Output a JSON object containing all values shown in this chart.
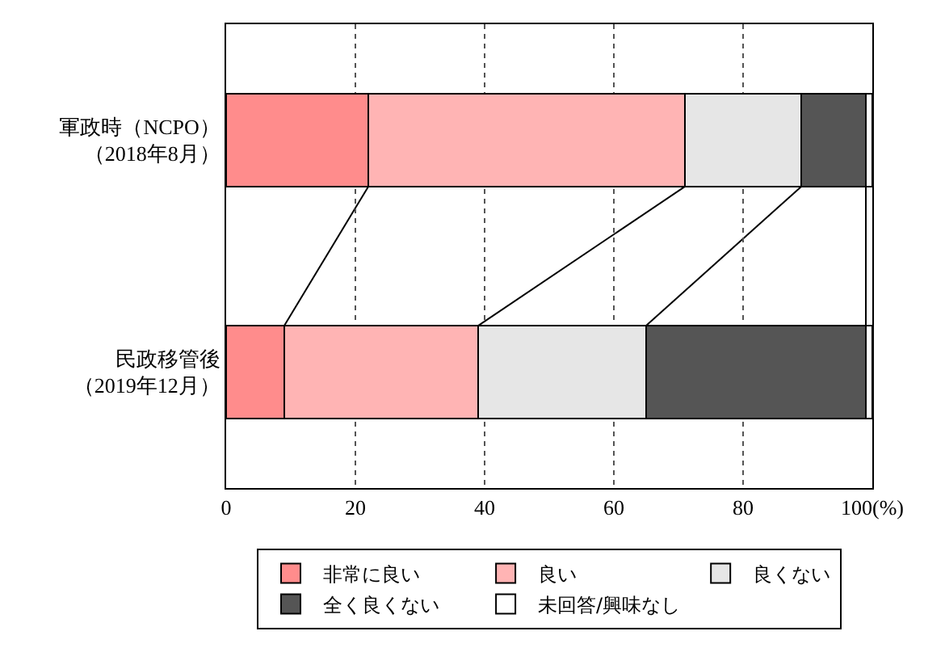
{
  "chart_data": {
    "type": "bar",
    "orientation": "horizontal",
    "stacked": true,
    "categories": [
      "軍政時（NCPO）（2018年8月）",
      "民政移管後（2019年12月）"
    ],
    "series": [
      {
        "name": "非常に良い",
        "color": "#ff8c8c",
        "values": [
          22,
          9
        ]
      },
      {
        "name": "良い",
        "color": "#ffb4b4",
        "values": [
          49,
          30
        ]
      },
      {
        "name": "良くない",
        "color": "#e6e6e6",
        "values": [
          18,
          26
        ]
      },
      {
        "name": "全く良くない",
        "color": "#555555",
        "values": [
          10,
          34
        ]
      },
      {
        "name": "未回答/興味なし",
        "color": "#ffffff",
        "values": [
          1,
          1
        ]
      }
    ],
    "xlim": [
      0,
      100
    ],
    "xticks": [
      0,
      20,
      40,
      60,
      80,
      {
        "value": 100,
        "label": "100(%)"
      }
    ],
    "grid": "x",
    "legend": "bottom"
  }
}
